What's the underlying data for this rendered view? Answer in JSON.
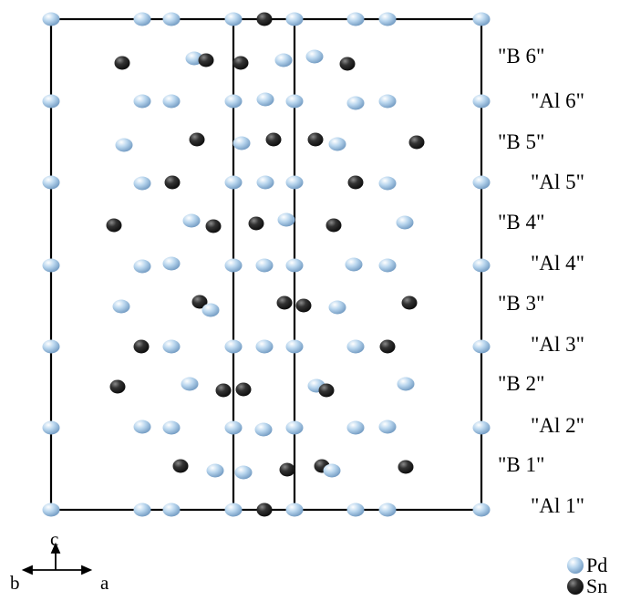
{
  "layer_labels": {
    "b6": "\"B 6\"",
    "al6": "\"Al 6\"",
    "b5": "\"B 5\"",
    "al5": "\"Al 5\"",
    "b4": "\"B 4\"",
    "al4": "\"Al 4\"",
    "b3": "\"B 3\"",
    "al3": "\"Al 3\"",
    "b2": "\"B 2\"",
    "al2": "\"Al 2\"",
    "b1": "\"B 1\"",
    "al1": "\"Al 1\""
  },
  "axes": {
    "c": "c",
    "b": "b",
    "a": "a"
  },
  "legend": {
    "pd_label": "Pd",
    "sn_label": "Sn"
  },
  "colors": {
    "pd": "#a9cbe8",
    "sn": "#1f1f1f",
    "cell_edge": "#000000"
  }
}
